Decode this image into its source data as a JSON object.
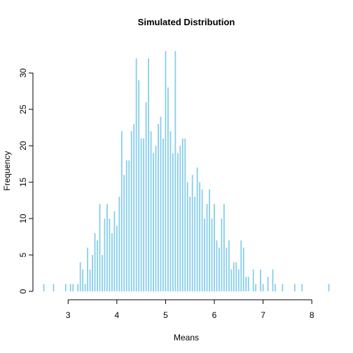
{
  "chart_data": {
    "type": "bar",
    "title": "Simulated Distribution",
    "xlabel": "Means",
    "ylabel": "Frequency",
    "xlim": [
      2.45,
      8.4
    ],
    "ylim": [
      0,
      33
    ],
    "bin_width": 0.05,
    "bar_color": "#87ceeb",
    "x_ticks": [
      3,
      4,
      5,
      6,
      7,
      8
    ],
    "y_ticks": [
      0,
      5,
      10,
      15,
      20,
      25,
      30
    ],
    "bins": [
      {
        "x": 2.5,
        "y": 1
      },
      {
        "x": 2.7,
        "y": 1
      },
      {
        "x": 2.95,
        "y": 1
      },
      {
        "x": 3.05,
        "y": 1
      },
      {
        "x": 3.1,
        "y": 1
      },
      {
        "x": 3.2,
        "y": 1
      },
      {
        "x": 3.25,
        "y": 4
      },
      {
        "x": 3.3,
        "y": 3
      },
      {
        "x": 3.35,
        "y": 1
      },
      {
        "x": 3.4,
        "y": 6
      },
      {
        "x": 3.45,
        "y": 3
      },
      {
        "x": 3.5,
        "y": 5
      },
      {
        "x": 3.55,
        "y": 8
      },
      {
        "x": 3.6,
        "y": 7
      },
      {
        "x": 3.65,
        "y": 12
      },
      {
        "x": 3.7,
        "y": 5
      },
      {
        "x": 3.75,
        "y": 10
      },
      {
        "x": 3.8,
        "y": 12
      },
      {
        "x": 3.85,
        "y": 10
      },
      {
        "x": 3.9,
        "y": 8
      },
      {
        "x": 3.95,
        "y": 11
      },
      {
        "x": 4.0,
        "y": 9
      },
      {
        "x": 4.05,
        "y": 13
      },
      {
        "x": 4.1,
        "y": 22
      },
      {
        "x": 4.15,
        "y": 16
      },
      {
        "x": 4.2,
        "y": 18
      },
      {
        "x": 4.25,
        "y": 18
      },
      {
        "x": 4.3,
        "y": 22
      },
      {
        "x": 4.35,
        "y": 23
      },
      {
        "x": 4.4,
        "y": 32
      },
      {
        "x": 4.45,
        "y": 29
      },
      {
        "x": 4.5,
        "y": 21
      },
      {
        "x": 4.55,
        "y": 21
      },
      {
        "x": 4.6,
        "y": 26
      },
      {
        "x": 4.65,
        "y": 32
      },
      {
        "x": 4.7,
        "y": 22
      },
      {
        "x": 4.75,
        "y": 19
      },
      {
        "x": 4.8,
        "y": 20
      },
      {
        "x": 4.85,
        "y": 23
      },
      {
        "x": 4.9,
        "y": 24
      },
      {
        "x": 4.95,
        "y": 21
      },
      {
        "x": 5.0,
        "y": 33
      },
      {
        "x": 5.05,
        "y": 28
      },
      {
        "x": 5.1,
        "y": 22
      },
      {
        "x": 5.15,
        "y": 19
      },
      {
        "x": 5.2,
        "y": 33
      },
      {
        "x": 5.25,
        "y": 19
      },
      {
        "x": 5.3,
        "y": 20
      },
      {
        "x": 5.35,
        "y": 21
      },
      {
        "x": 5.4,
        "y": 21
      },
      {
        "x": 5.45,
        "y": 15
      },
      {
        "x": 5.5,
        "y": 13
      },
      {
        "x": 5.55,
        "y": 16
      },
      {
        "x": 5.6,
        "y": 13
      },
      {
        "x": 5.65,
        "y": 17
      },
      {
        "x": 5.7,
        "y": 15
      },
      {
        "x": 5.75,
        "y": 14
      },
      {
        "x": 5.8,
        "y": 10
      },
      {
        "x": 5.85,
        "y": 12
      },
      {
        "x": 5.9,
        "y": 14
      },
      {
        "x": 5.95,
        "y": 10
      },
      {
        "x": 6.0,
        "y": 12
      },
      {
        "x": 6.05,
        "y": 7
      },
      {
        "x": 6.1,
        "y": 6
      },
      {
        "x": 6.15,
        "y": 10
      },
      {
        "x": 6.2,
        "y": 12
      },
      {
        "x": 6.25,
        "y": 6
      },
      {
        "x": 6.3,
        "y": 7
      },
      {
        "x": 6.35,
        "y": 3
      },
      {
        "x": 6.4,
        "y": 4
      },
      {
        "x": 6.45,
        "y": 4
      },
      {
        "x": 6.5,
        "y": 3
      },
      {
        "x": 6.55,
        "y": 7
      },
      {
        "x": 6.6,
        "y": 6
      },
      {
        "x": 6.65,
        "y": 2
      },
      {
        "x": 6.7,
        "y": 2
      },
      {
        "x": 6.8,
        "y": 3
      },
      {
        "x": 6.85,
        "y": 1
      },
      {
        "x": 6.95,
        "y": 3
      },
      {
        "x": 7.0,
        "y": 1
      },
      {
        "x": 7.1,
        "y": 2
      },
      {
        "x": 7.2,
        "y": 3
      },
      {
        "x": 7.25,
        "y": 1
      },
      {
        "x": 7.4,
        "y": 1
      },
      {
        "x": 7.65,
        "y": 1
      },
      {
        "x": 7.8,
        "y": 1
      },
      {
        "x": 8.35,
        "y": 1
      }
    ]
  }
}
